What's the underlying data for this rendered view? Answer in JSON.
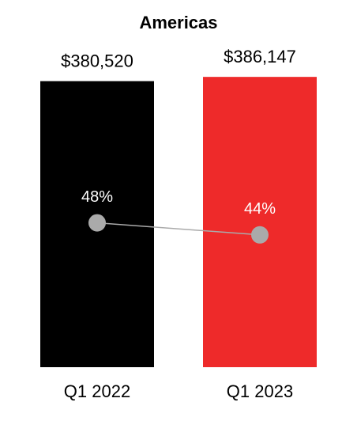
{
  "chart_data": {
    "type": "bar",
    "title": "Americas",
    "categories": [
      "Q1 2022",
      "Q1 2023"
    ],
    "series": [
      {
        "type": "bar",
        "colors": [
          "#000000",
          "#ee2a2a"
        ],
        "values": [
          380520,
          386147
        ],
        "value_labels": [
          "$380,520",
          "$386,147"
        ]
      },
      {
        "type": "line",
        "axis": "y2",
        "color": "#aaaaaa",
        "values": [
          48,
          44
        ],
        "value_labels": [
          "48%",
          "44%"
        ]
      }
    ],
    "ylim": [
      0,
      400000
    ],
    "y2lim": [
      0,
      100
    ]
  }
}
